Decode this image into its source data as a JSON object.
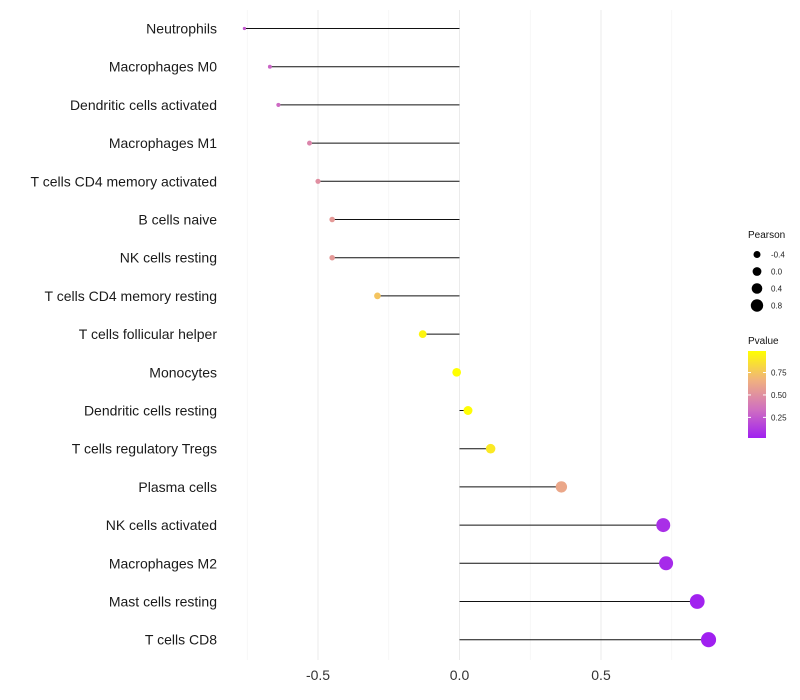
{
  "chart_data": {
    "type": "lollipop",
    "categories": [
      "Neutrophils",
      "Macrophages M0",
      "Dendritic cells activated",
      "Macrophages M1",
      "T cells CD4 memory activated",
      "B cells naive",
      "NK cells resting",
      "T cells CD4 memory resting",
      "T cells follicular helper",
      "Monocytes",
      "Dendritic cells resting",
      "T cells regulatory  Tregs ",
      "Plasma cells",
      "NK cells activated",
      "Macrophages M2",
      "Mast cells resting",
      "T cells CD8"
    ],
    "values": [
      -0.76,
      -0.67,
      -0.64,
      -0.53,
      -0.5,
      -0.45,
      -0.45,
      -0.29,
      -0.13,
      -0.01,
      0.03,
      0.11,
      0.36,
      0.72,
      0.73,
      0.84,
      0.88
    ],
    "pvalues": [
      0.25,
      0.3,
      0.32,
      0.45,
      0.5,
      0.55,
      0.55,
      0.75,
      0.95,
      0.99,
      0.98,
      0.9,
      0.62,
      0.08,
      0.06,
      0.03,
      0.02
    ],
    "x_ticks": [
      -0.5,
      0.0,
      0.5
    ],
    "x_tick_labels": [
      "-0.5",
      "0.0",
      "0.5"
    ],
    "xlim": [
      -0.8,
      0.95
    ],
    "xlabel": "",
    "ylabel": "",
    "title": "",
    "grid": true,
    "legend_size": {
      "title": "Pearson",
      "values": [
        -0.4,
        0.0,
        0.4,
        0.8
      ],
      "labels": [
        "-0.4",
        "0.0",
        "0.4",
        "0.8"
      ]
    },
    "legend_color": {
      "title": "Pvalue",
      "ticks": [
        0.75,
        0.5,
        0.25
      ],
      "labels": [
        "0.75",
        "0.50",
        "0.25"
      ],
      "range": [
        0.02,
        0.99
      ],
      "colors": [
        "#a020f0",
        "#d070c0",
        "#f0b080",
        "#ffff00"
      ]
    },
    "legend_position": "right"
  }
}
